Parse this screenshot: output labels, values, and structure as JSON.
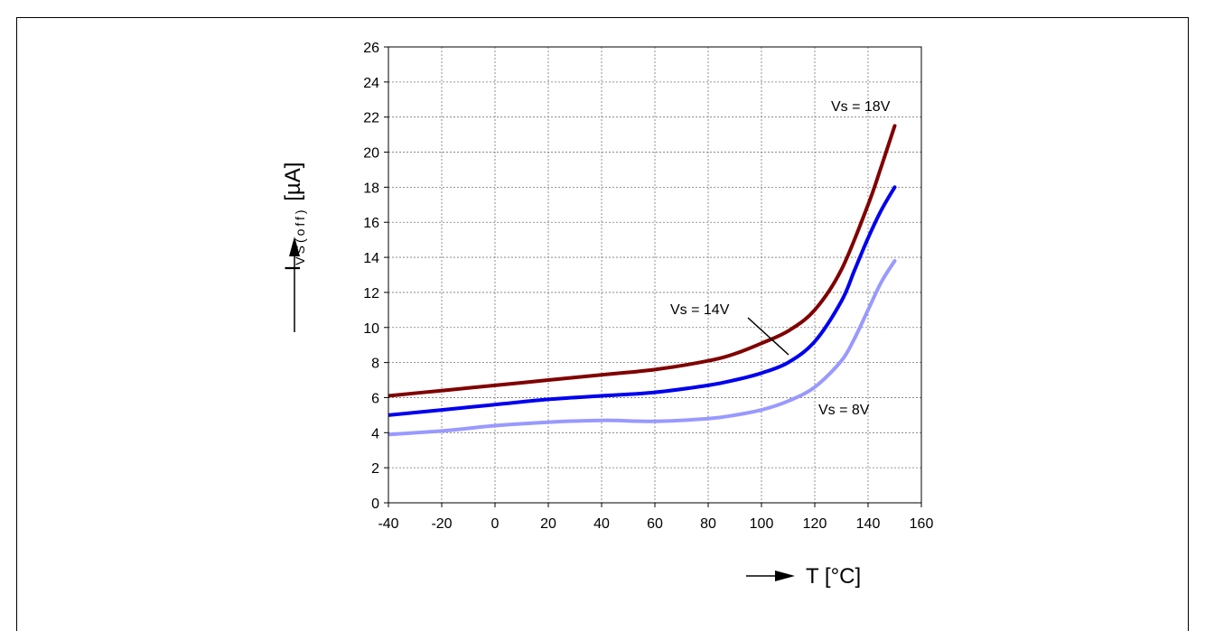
{
  "chart_data": {
    "type": "line",
    "title": "",
    "xlabel": "T [°C]",
    "ylabel": {
      "base": "I",
      "subscript": "VS(off)",
      "unit": " [µA]"
    },
    "xlim": [
      -40,
      160
    ],
    "ylim": [
      0,
      26
    ],
    "xticks": [
      -40,
      -20,
      0,
      20,
      40,
      60,
      80,
      100,
      120,
      140,
      160
    ],
    "yticks": [
      0,
      2,
      4,
      6,
      8,
      10,
      12,
      14,
      16,
      18,
      20,
      22,
      24,
      26
    ],
    "grid": true,
    "series": [
      {
        "name": "Vs = 18V",
        "color": "#800000",
        "x": [
          -40,
          -20,
          0,
          20,
          40,
          60,
          80,
          90,
          100,
          110,
          120,
          130,
          140,
          145,
          150
        ],
        "y": [
          6.1,
          6.4,
          6.7,
          7.0,
          7.3,
          7.6,
          8.1,
          8.5,
          9.1,
          9.8,
          11.0,
          13.3,
          17.0,
          19.2,
          21.5
        ]
      },
      {
        "name": "Vs = 14V",
        "color": "#0000ee",
        "x": [
          -40,
          -20,
          0,
          20,
          40,
          60,
          80,
          90,
          100,
          110,
          120,
          130,
          135,
          140,
          145,
          150
        ],
        "y": [
          5.0,
          5.3,
          5.6,
          5.9,
          6.1,
          6.3,
          6.7,
          7.0,
          7.4,
          8.0,
          9.2,
          11.5,
          13.3,
          15.1,
          16.7,
          18.0
        ]
      },
      {
        "name": "Vs = 8V",
        "color": "#9999ff",
        "x": [
          -40,
          -20,
          0,
          20,
          40,
          60,
          80,
          90,
          100,
          110,
          120,
          130,
          135,
          140,
          145,
          150
        ],
        "y": [
          3.9,
          4.1,
          4.4,
          4.6,
          4.7,
          4.65,
          4.8,
          5.0,
          5.3,
          5.8,
          6.6,
          8.1,
          9.4,
          11.0,
          12.6,
          13.8
        ]
      }
    ],
    "annotations": [
      {
        "text": "Vs = 18V",
        "series": 0
      },
      {
        "text": "Vs = 14V",
        "series": 1
      },
      {
        "text": "Vs = 8V",
        "series": 2
      }
    ]
  }
}
